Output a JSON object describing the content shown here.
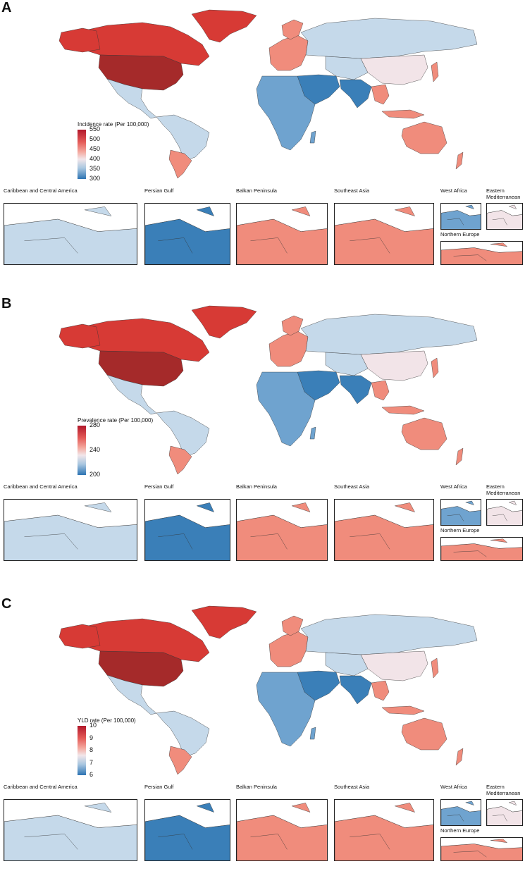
{
  "panels": [
    {
      "letter": "A",
      "legend_title": "Incidence rate (Per 100,000)",
      "legend_ticks": [
        "550",
        "500",
        "450",
        "400",
        "350",
        "300"
      ],
      "insets": [
        "Caribbean and Central America",
        "Persian Gulf",
        "Balkan Peninsula",
        "Southeast Asia",
        "West Africa",
        "Eastern Mediterranean",
        "Northern Europe"
      ]
    },
    {
      "letter": "B",
      "legend_title": "Prevalence rate (Per 100,000)",
      "legend_ticks": [
        "280",
        "240",
        "200"
      ],
      "insets": [
        "Caribbean and Central America",
        "Persian Gulf",
        "Balkan Peninsula",
        "Southeast Asia",
        "West Africa",
        "Eastern Mediterranean",
        "Northern Europe"
      ]
    },
    {
      "letter": "C",
      "legend_title": "YLD rate (Per 100,000)",
      "legend_ticks": [
        "10",
        "9",
        "8",
        "7",
        "6"
      ],
      "insets": [
        "Caribbean and Central America",
        "Persian Gulf",
        "Balkan Peninsula",
        "Southeast Asia",
        "West Africa",
        "Eastern Mediterranean",
        "Northern Europe"
      ]
    }
  ],
  "colors": {
    "darkest_red": "#a52a2a",
    "dark_red": "#d73a35",
    "salmon": "#f08c7c",
    "light_pink": "#f2e4e8",
    "light_blue": "#c5d9ea",
    "mid_blue": "#6fa3cf",
    "dark_blue": "#3a7fb8"
  }
}
